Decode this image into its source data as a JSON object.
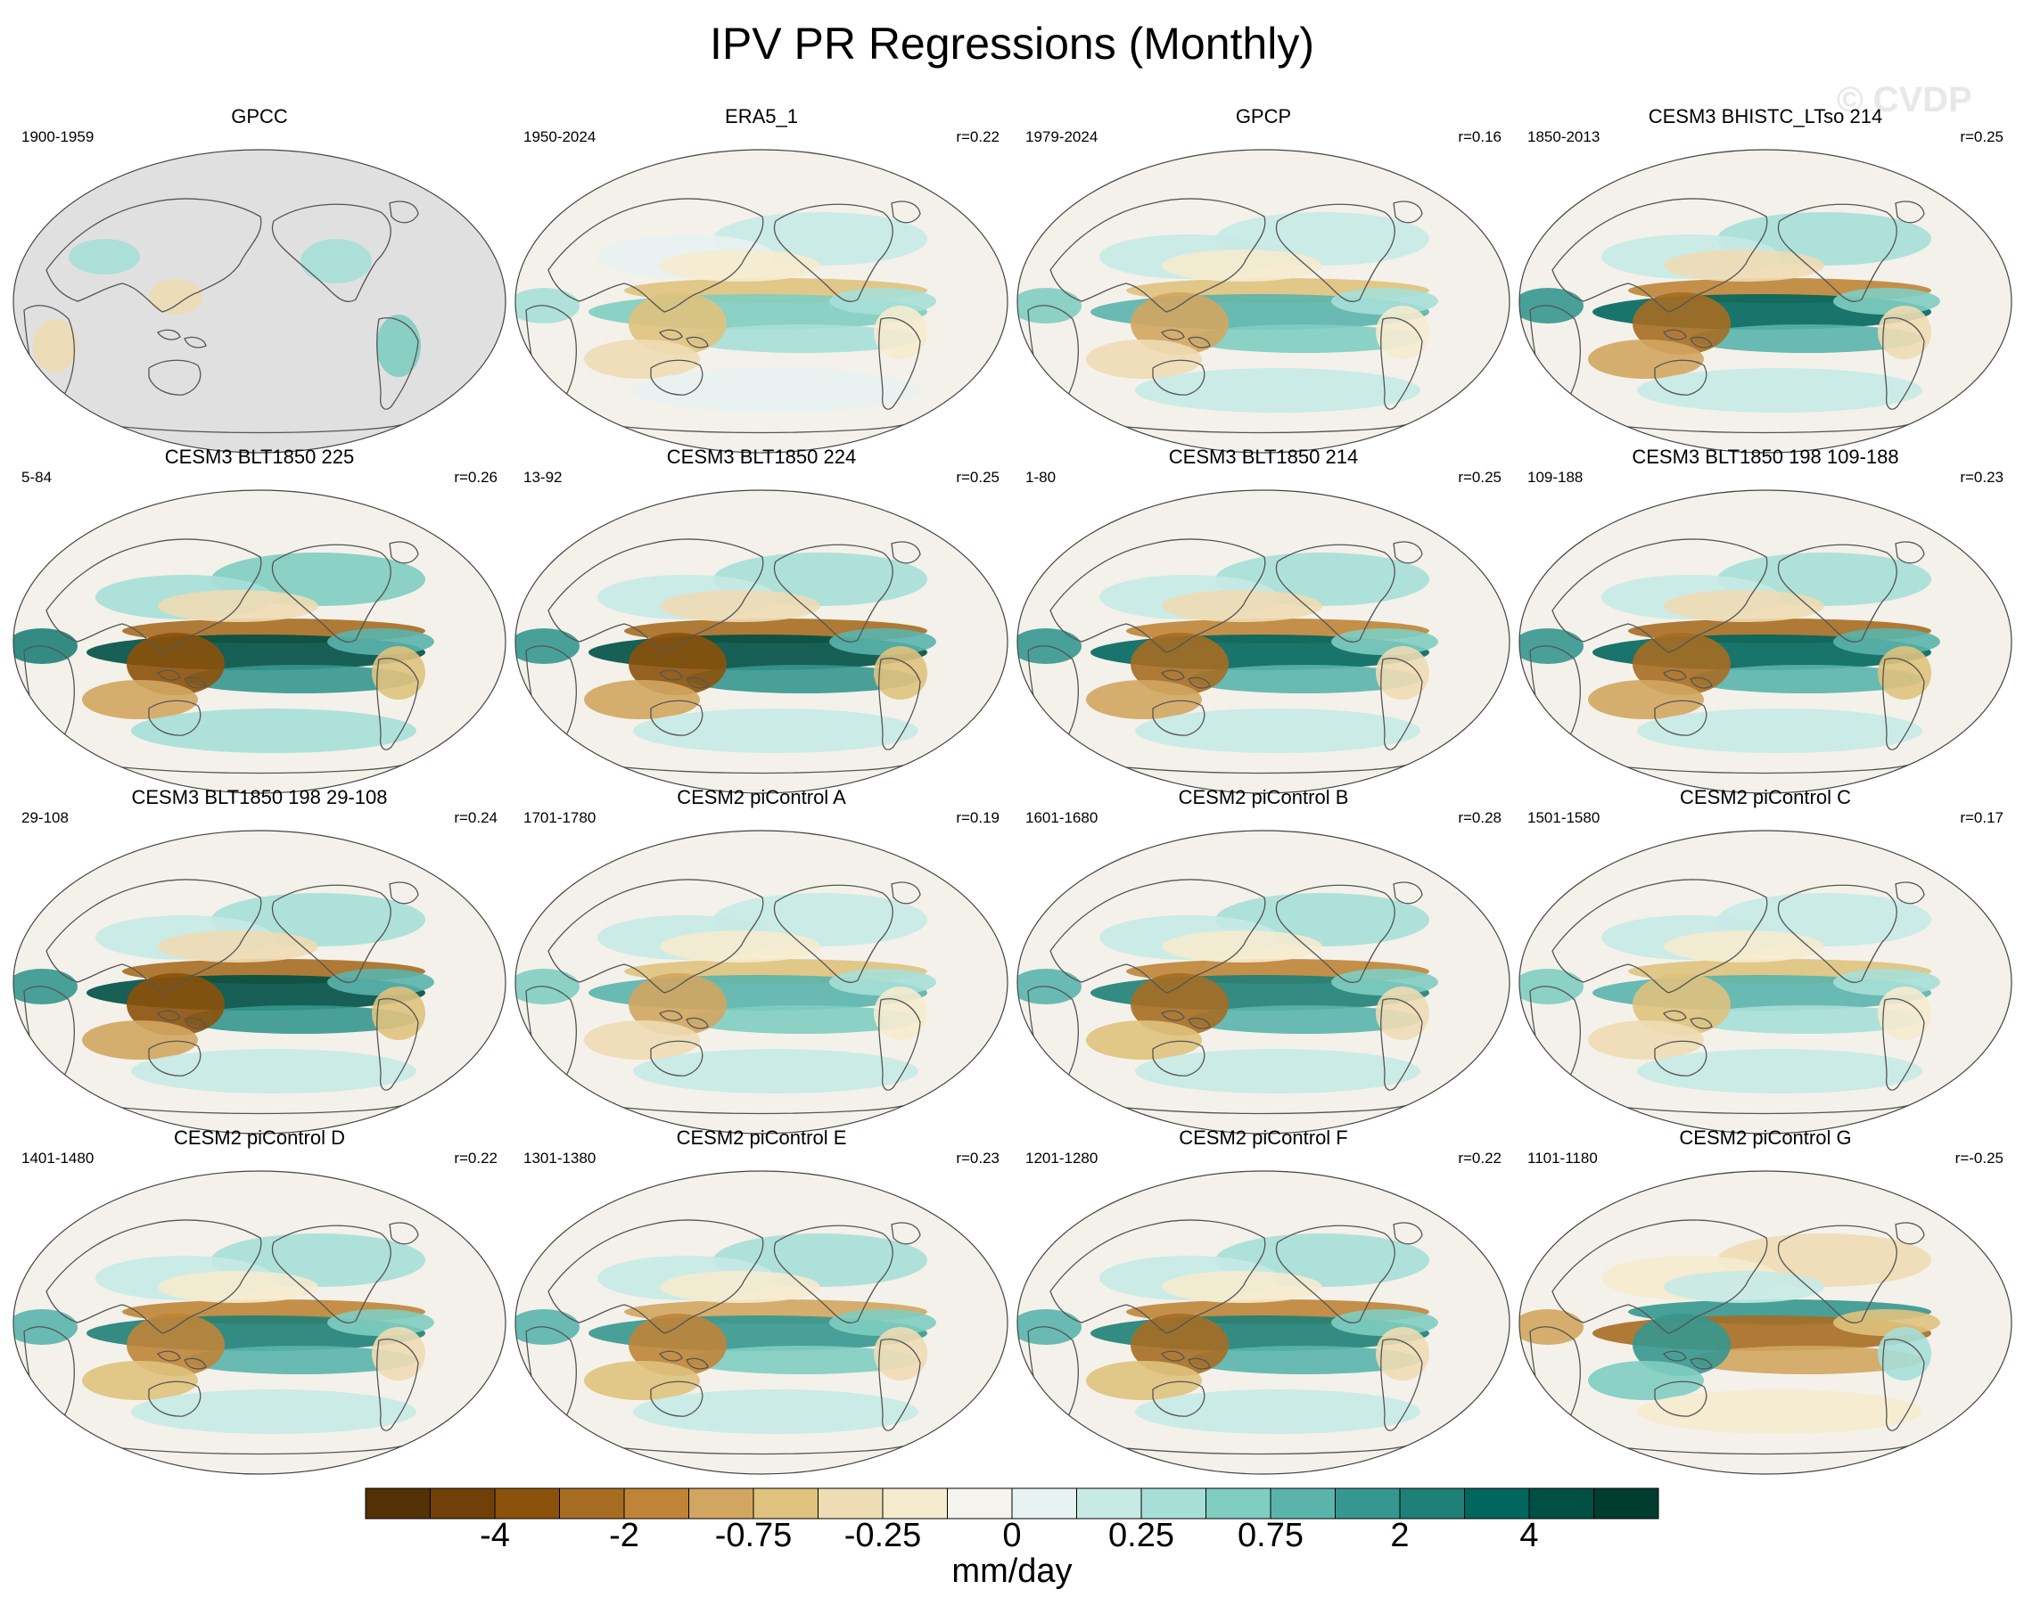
{
  "title": "IPV PR Regressions (Monthly)",
  "watermark": "© CVDP",
  "colorbar": {
    "units": "mm/day",
    "tick_labels": [
      "-4",
      "-2",
      "-0.75",
      "-0.25",
      "0",
      "0.25",
      "0.75",
      "2",
      "4"
    ],
    "colors": [
      "#543005",
      "#714008",
      "#8c510a",
      "#a66d22",
      "#bf8437",
      "#d1a660",
      "#dfc27d",
      "#eedcb4",
      "#f5ebcf",
      "#f5f3ec",
      "#e8f2f1",
      "#c7eae5",
      "#a6dfd7",
      "#80cdc1",
      "#5ab4ac",
      "#35978f",
      "#1e8077",
      "#01665e",
      "#004f45",
      "#003c30"
    ]
  },
  "colors": {
    "land_mask_gray": "#e0e0e0",
    "ocean_neutral": "#f3f1ea",
    "coastline": "#555555"
  },
  "chart_data": {
    "type": "heatmap",
    "title": "IPV PR Regressions (Monthly)",
    "units": "mm/day",
    "levels": [
      -5,
      -4,
      -3,
      -2,
      -1,
      -0.75,
      -0.5,
      -0.25,
      -0.1,
      0,
      0.1,
      0.25,
      0.5,
      0.75,
      1,
      2,
      3,
      4,
      5
    ],
    "panels": [
      {
        "name": "GPCC",
        "period": "1900-1959",
        "r": "",
        "masked": true,
        "intensity": 0.2
      },
      {
        "name": "ERA5_1",
        "period": "1950-2024",
        "r": "r=0.22",
        "masked": false,
        "intensity": 0.45
      },
      {
        "name": "GPCP",
        "period": "1979-2024",
        "r": "r=0.16",
        "masked": false,
        "intensity": 0.55
      },
      {
        "name": "CESM3 BHISTC_LTso 214",
        "period": "1850-2013",
        "r": "r=0.25",
        "masked": false,
        "intensity": 0.85
      },
      {
        "name": "CESM3 BLT1850 225",
        "period": "5-84",
        "r": "r=0.26",
        "masked": false,
        "intensity": 1.0
      },
      {
        "name": "CESM3 BLT1850 224",
        "period": "13-92",
        "r": "r=0.25",
        "masked": false,
        "intensity": 0.95
      },
      {
        "name": "CESM3 BLT1850 214",
        "period": "1-80",
        "r": "r=0.25",
        "masked": false,
        "intensity": 0.85
      },
      {
        "name": "CESM3 BLT1850 198 109-188",
        "period": "109-188",
        "r": "r=0.23",
        "masked": false,
        "intensity": 0.9
      },
      {
        "name": "CESM3 BLT1850 198 29-108",
        "period": "29-108",
        "r": "r=0.24",
        "masked": false,
        "intensity": 0.95
      },
      {
        "name": "CESM2 piControl A",
        "period": "1701-1780",
        "r": "r=0.19",
        "masked": false,
        "intensity": 0.55
      },
      {
        "name": "CESM2 piControl B",
        "period": "1601-1680",
        "r": "r=0.28",
        "masked": false,
        "intensity": 0.8
      },
      {
        "name": "CESM2 piControl C",
        "period": "1501-1580",
        "r": "r=0.17",
        "masked": false,
        "intensity": 0.5
      },
      {
        "name": "CESM2 piControl D",
        "period": "1401-1480",
        "r": "r=0.22",
        "masked": false,
        "intensity": 0.75
      },
      {
        "name": "CESM2 piControl E",
        "period": "1301-1380",
        "r": "r=0.23",
        "masked": false,
        "intensity": 0.7
      },
      {
        "name": "CESM2 piControl F",
        "period": "1201-1280",
        "r": "r=0.22",
        "masked": false,
        "intensity": 0.8
      },
      {
        "name": "CESM2 piControl G",
        "period": "1101-1180",
        "r": "r=-0.25",
        "masked": false,
        "intensity": -0.75
      }
    ]
  }
}
